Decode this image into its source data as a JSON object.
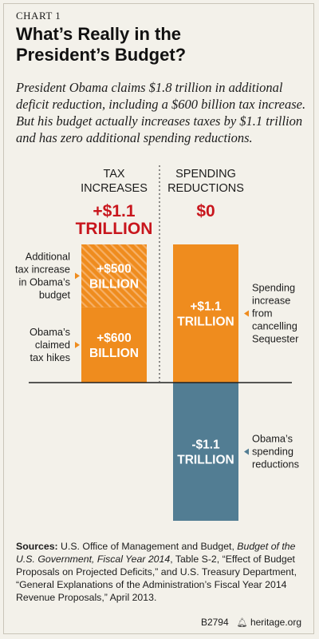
{
  "header": {
    "chart_number": "CHART 1",
    "title_line1": "What’s Really in the",
    "title_line2": "President’s Budget?",
    "subtitle": "President Obama claims $1.8 trillion in additional deficit reduction, including a $600 billion tax increase. But his budget actually increases taxes by $1.1 trillion and has zero additional spending reductions."
  },
  "chart_data": {
    "type": "bar",
    "title": "What’s Really in the President’s Budget?",
    "units": "trillion dollars",
    "columns": [
      {
        "header_lines": [
          "TAX",
          "INCREASES"
        ],
        "total_lines": [
          "+$1.1",
          "TRILLION"
        ],
        "total_value": 1.1,
        "segments": [
          {
            "name": "Obama’s claimed tax hikes",
            "value": 0.6,
            "label_lines": [
              "+$600",
              "BILLION"
            ],
            "annotation_lines": [
              "Obama’s",
              "claimed",
              "tax hikes"
            ],
            "color": "#ef8c1e",
            "hatched": false
          },
          {
            "name": "Additional tax increase in Obama’s budget",
            "value": 0.5,
            "label_lines": [
              "+$500",
              "BILLION"
            ],
            "annotation_lines": [
              "Additional",
              "tax increase",
              "in Obama’s",
              "budget"
            ],
            "color": "#ef8c1e",
            "hatched": true
          }
        ]
      },
      {
        "header_lines": [
          "SPENDING",
          "REDUCTIONS"
        ],
        "total_lines": [
          "$0"
        ],
        "total_value": 0,
        "segments": [
          {
            "name": "Spending increase from cancelling Sequester",
            "value": 1.1,
            "label_lines": [
              "+$1.1",
              "TRILLION"
            ],
            "annotation_lines": [
              "Spending",
              "increase",
              "from",
              "cancelling",
              "Sequester"
            ],
            "color": "#ef8c1e",
            "hatched": false
          },
          {
            "name": "Obama’s spending reductions",
            "value": -1.1,
            "label_lines": [
              "-$1.1",
              "TRILLION"
            ],
            "annotation_lines": [
              "Obama’s",
              "spending",
              "reductions"
            ],
            "color": "#527d93",
            "hatched": false
          }
        ]
      }
    ],
    "colors": {
      "orange": "#ef8c1e",
      "blue": "#527d93",
      "red": "#c8161d",
      "baseline": "#222222"
    }
  },
  "sources": {
    "label": "Sources:",
    "text1": " U.S. Office of Management and Budget, ",
    "italic": "Budget of the U.S. Government, Fiscal Year 2014",
    "text2": ", Table S-2, “Effect of Budget Proposals on Projected Deficits,” and U.S. Treasury Department, “General Explanations of the Administration’s Fiscal Year 2014 Revenue Proposals,” April 2013."
  },
  "footer": {
    "code": "B2794",
    "icon": "liberty-bell-icon",
    "site": "heritage.org"
  }
}
